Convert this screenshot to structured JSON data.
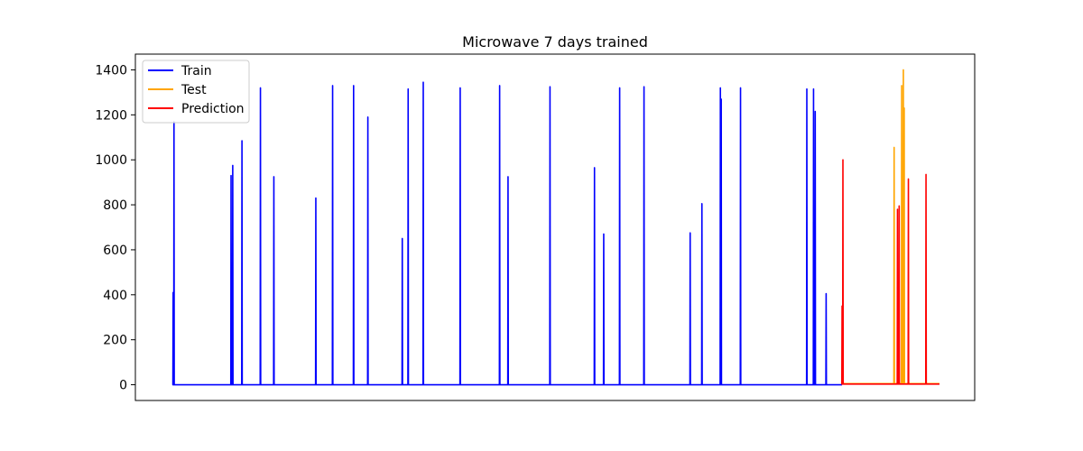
{
  "chart_data": {
    "type": "line",
    "title": "Microwave 7 days trained",
    "xlabel": "",
    "ylabel": "",
    "x_axis_visible": false,
    "xlim": [
      0,
      1000
    ],
    "ylim": [
      -70,
      1470
    ],
    "yticks": [
      0,
      200,
      400,
      600,
      800,
      1000,
      1200,
      1400
    ],
    "grid": false,
    "legend": {
      "placement": "upper-left"
    },
    "series": [
      {
        "name": "Train",
        "color": "#0000ff",
        "x_range": [
          45,
          842
        ],
        "baseline": 0,
        "spikes": [
          {
            "x": 45,
            "peak": 410
          },
          {
            "x": 46,
            "peak": 1170
          },
          {
            "x": 114,
            "peak": 930
          },
          {
            "x": 116,
            "peak": 975
          },
          {
            "x": 127,
            "peak": 1085
          },
          {
            "x": 149,
            "peak": 1320
          },
          {
            "x": 165,
            "peak": 925
          },
          {
            "x": 215,
            "peak": 830
          },
          {
            "x": 235,
            "peak": 1330
          },
          {
            "x": 260,
            "peak": 1330
          },
          {
            "x": 277,
            "peak": 1190
          },
          {
            "x": 318,
            "peak": 650
          },
          {
            "x": 325,
            "peak": 1315
          },
          {
            "x": 343,
            "peak": 1345
          },
          {
            "x": 387,
            "peak": 1320
          },
          {
            "x": 434,
            "peak": 1330
          },
          {
            "x": 444,
            "peak": 925
          },
          {
            "x": 494,
            "peak": 1325
          },
          {
            "x": 547,
            "peak": 965
          },
          {
            "x": 558,
            "peak": 670
          },
          {
            "x": 577,
            "peak": 1320
          },
          {
            "x": 606,
            "peak": 1325
          },
          {
            "x": 661,
            "peak": 675
          },
          {
            "x": 675,
            "peak": 805
          },
          {
            "x": 697,
            "peak": 1320
          },
          {
            "x": 698,
            "peak": 1270
          },
          {
            "x": 721,
            "peak": 1320
          },
          {
            "x": 800,
            "peak": 1315
          },
          {
            "x": 808,
            "peak": 1315
          },
          {
            "x": 810,
            "peak": 1215
          },
          {
            "x": 823,
            "peak": 405
          }
        ]
      },
      {
        "name": "Test",
        "color": "#ffa500",
        "x_range": [
          842,
          958
        ],
        "baseline": 5,
        "spikes": [
          {
            "x": 904,
            "peak": 1055
          },
          {
            "x": 913,
            "peak": 1330
          },
          {
            "x": 915,
            "peak": 1400
          },
          {
            "x": 916,
            "peak": 1230
          }
        ]
      },
      {
        "name": "Prediction",
        "color": "#ff0000",
        "x_range": [
          842,
          958
        ],
        "baseline": 3,
        "spikes": [
          {
            "x": 842,
            "peak": 350
          },
          {
            "x": 843,
            "peak": 1000
          },
          {
            "x": 908,
            "peak": 780
          },
          {
            "x": 910,
            "peak": 795
          },
          {
            "x": 921,
            "peak": 915
          },
          {
            "x": 942,
            "peak": 935
          }
        ]
      }
    ]
  }
}
